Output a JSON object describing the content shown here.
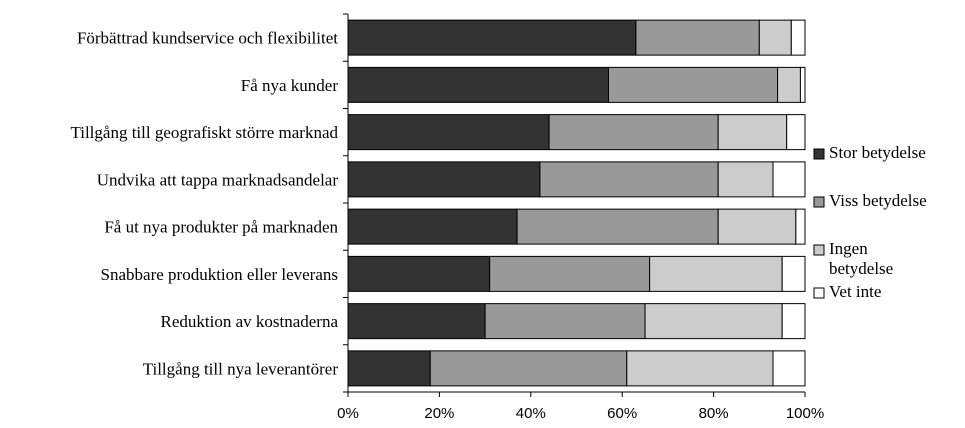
{
  "chart_data": {
    "type": "bar",
    "orientation": "horizontal",
    "stacked": true,
    "categories": [
      "Förbättrad kundservice och flexibilitet",
      "Få nya kunder",
      "Tillgång till geografiskt större marknad",
      "Undvika att tappa marknadsandelar",
      "Få ut nya produkter på marknaden",
      "Snabbare produktion eller leverans",
      "Reduktion av kostnaderna",
      "Tillgång till nya leverantörer"
    ],
    "series": [
      {
        "name": "Stor betydelse",
        "color": "#333333",
        "values": [
          63,
          57,
          44,
          42,
          37,
          31,
          30,
          18
        ]
      },
      {
        "name": "Viss betydelse",
        "color": "#999999",
        "values": [
          27,
          37,
          37,
          39,
          44,
          35,
          35,
          43
        ]
      },
      {
        "name": "Ingen betydelse",
        "color": "#cccccc",
        "values": [
          7,
          5,
          15,
          12,
          17,
          29,
          30,
          32
        ]
      },
      {
        "name": "Vet inte",
        "color": "#ffffff",
        "values": [
          3,
          1,
          4,
          7,
          2,
          5,
          5,
          7
        ]
      }
    ],
    "legend_labels": [
      [
        "Stor betydelse"
      ],
      [
        "Viss betydelse"
      ],
      [
        "Ingen",
        "betydelse"
      ],
      [
        "Vet inte"
      ]
    ],
    "x_ticks": [
      "0%",
      "20%",
      "40%",
      "60%",
      "80%",
      "100%"
    ],
    "xlim": [
      0,
      100
    ],
    "grid": false,
    "legend_position": "right"
  }
}
